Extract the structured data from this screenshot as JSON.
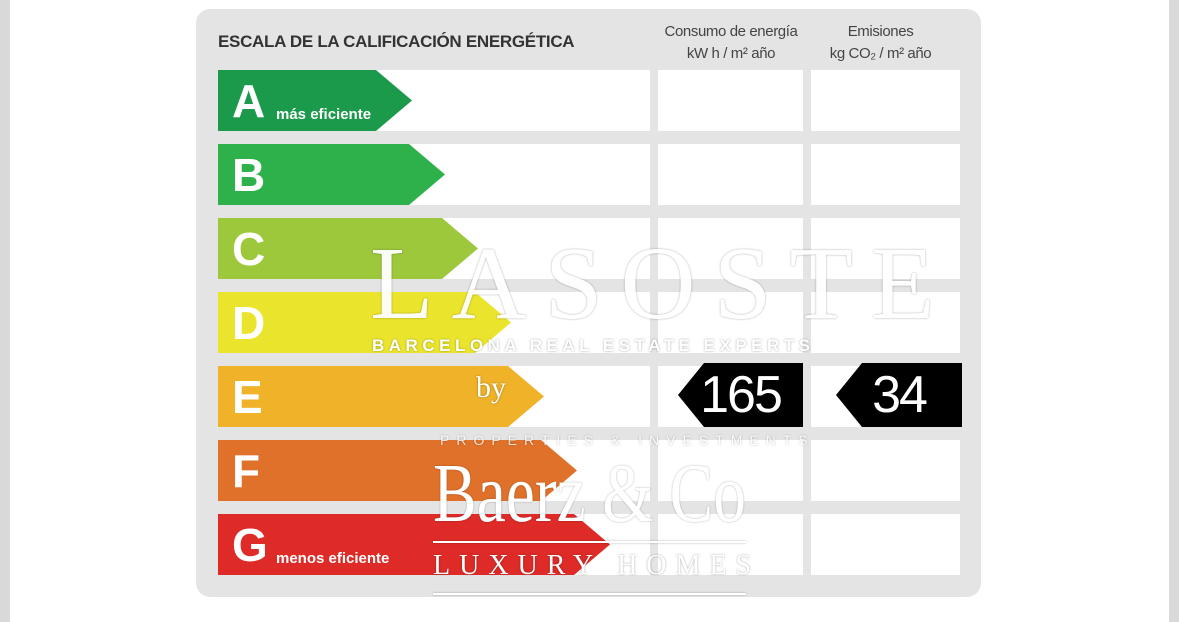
{
  "label": {
    "title": "ESCALA DE LA CALIFICACIÓN ENERGÉTICA",
    "columns": [
      {
        "line1": "Consumo de energía",
        "line2": "kW h  / m² año"
      },
      {
        "line1": "Emisiones",
        "line2": "kg CO₂  / m² año"
      }
    ],
    "ratings": [
      {
        "letter": "A",
        "sublabel": "más eficiente",
        "color": "#1a9a4a"
      },
      {
        "letter": "B",
        "sublabel": "",
        "color": "#2eb04b"
      },
      {
        "letter": "C",
        "sublabel": "",
        "color": "#9dc83c"
      },
      {
        "letter": "D",
        "sublabel": "",
        "color": "#ebe42d"
      },
      {
        "letter": "E",
        "sublabel": "",
        "color": "#efb228"
      },
      {
        "letter": "F",
        "sublabel": "",
        "color": "#e0712a"
      },
      {
        "letter": "G",
        "sublabel": "menos eficiente",
        "color": "#de2b27"
      }
    ],
    "current_rating": "E",
    "consumption_value": "165",
    "emissions_value": "34"
  },
  "watermark": {
    "brand1": "LASOSTE",
    "brand1_tagline": "BARCELONA REAL ESTATE EXPERTS",
    "by": "by",
    "brand2_tagline": "PROPERTIES & INVESTMENTS",
    "brand3": "Baerz & Co",
    "brand3_tagline": "LUXURY HOMES"
  }
}
